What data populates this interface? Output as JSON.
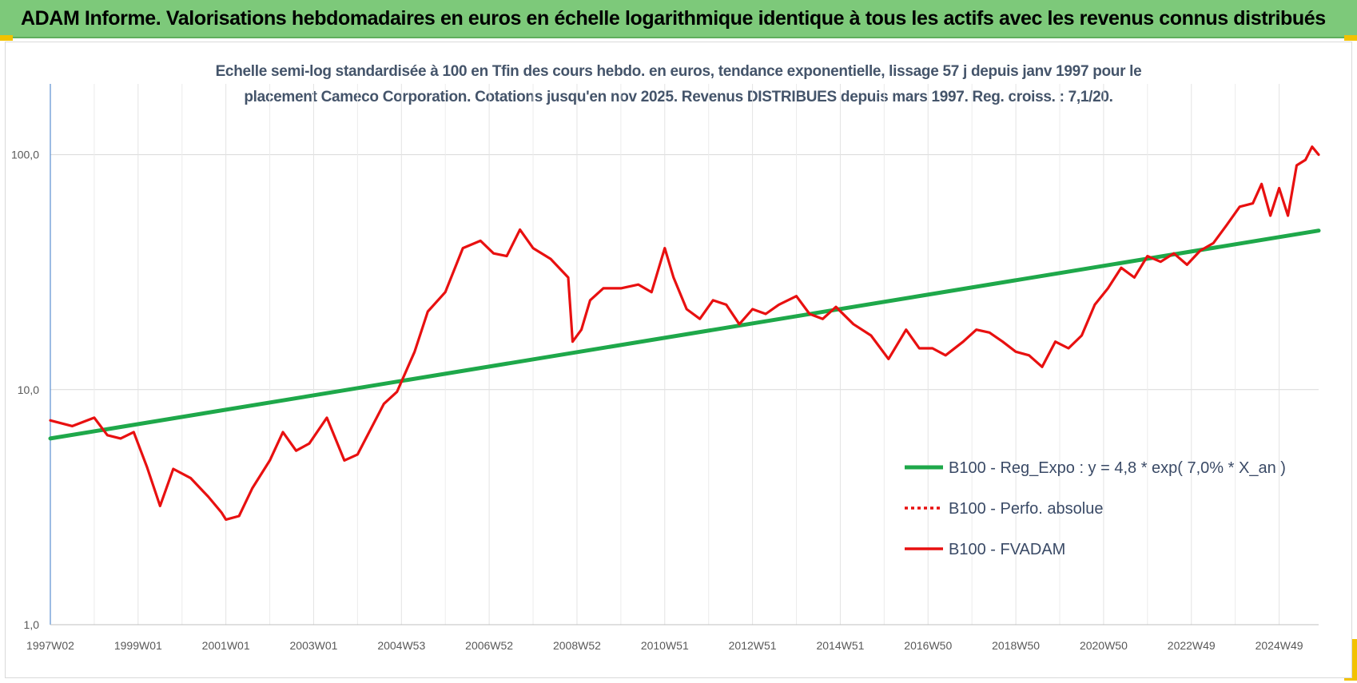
{
  "header": {
    "title": "ADAM Informe. Valorisations hebdomadaires en euros en échelle logarithmique identique à tous les actifs avec les revenus connus distribués"
  },
  "chart_data": {
    "type": "line",
    "title_line1": "Echelle semi-log standardisée à 100 en Tfin des cours hebdo. en euros, tendance exponentielle, lissage 57 j depuis janv 1997 pour le",
    "title_line2": "placement Cameco Corporation. Cotations jusqu'en nov 2025. Revenus DISTRIBUES depuis mars 1997. Reg. croiss. : 7,1/20.",
    "y_scale": "log",
    "ylim": [
      1,
      200
    ],
    "y_ticks": [
      {
        "value": 100,
        "label": "100,0"
      },
      {
        "value": 10,
        "label": "10,0"
      },
      {
        "value": 1,
        "label": "1,0"
      }
    ],
    "xlim": [
      1997.0,
      2025.9
    ],
    "x_ticks": [
      {
        "value": 1997.0,
        "label": "1997W02"
      },
      {
        "value": 1999.0,
        "label": "1999W01"
      },
      {
        "value": 2001.0,
        "label": "2001W01"
      },
      {
        "value": 2003.0,
        "label": "2003W01"
      },
      {
        "value": 2005.0,
        "label": "2004W53"
      },
      {
        "value": 2007.0,
        "label": "2006W52"
      },
      {
        "value": 2009.0,
        "label": "2008W52"
      },
      {
        "value": 2011.0,
        "label": "2010W51"
      },
      {
        "value": 2013.0,
        "label": "2012W51"
      },
      {
        "value": 2015.0,
        "label": "2014W51"
      },
      {
        "value": 2017.0,
        "label": "2016W50"
      },
      {
        "value": 2019.0,
        "label": "2018W50"
      },
      {
        "value": 2021.0,
        "label": "2020W50"
      },
      {
        "value": 2023.0,
        "label": "2022W49"
      },
      {
        "value": 2025.0,
        "label": "2024W49"
      }
    ],
    "series": [
      {
        "name": "B100 - Reg_Expo : y = 4,8 * exp( 7,0% *  X_an )",
        "color": "#1ea84a",
        "style": "solid",
        "x": [
          1997.0,
          2025.9
        ],
        "values": [
          6.2,
          47.5
        ]
      },
      {
        "name": "B100 - Perfo. absolue",
        "color": "#e81010",
        "style": "dotted",
        "x": [],
        "values": []
      },
      {
        "name": "B100 - FVADAM",
        "color": "#e81010",
        "style": "solid",
        "x": [
          1997.0,
          1997.5,
          1998.0,
          1998.3,
          1998.6,
          1998.9,
          1999.2,
          1999.5,
          1999.8,
          2000.2,
          2000.6,
          2000.9,
          2001.0,
          2001.3,
          2001.6,
          2002.0,
          2002.3,
          2002.6,
          2002.9,
          2003.3,
          2003.7,
          2004.0,
          2004.3,
          2004.6,
          2004.9,
          2005.3,
          2005.6,
          2006.0,
          2006.4,
          2006.8,
          2007.1,
          2007.4,
          2007.7,
          2008.0,
          2008.4,
          2008.8,
          2008.9,
          2009.1,
          2009.3,
          2009.6,
          2010.0,
          2010.4,
          2010.7,
          2011.0,
          2011.2,
          2011.5,
          2011.8,
          2012.1,
          2012.4,
          2012.7,
          2013.0,
          2013.3,
          2013.6,
          2014.0,
          2014.3,
          2014.6,
          2014.9,
          2015.3,
          2015.7,
          2016.1,
          2016.5,
          2016.8,
          2017.1,
          2017.4,
          2017.8,
          2018.1,
          2018.4,
          2018.7,
          2019.0,
          2019.3,
          2019.6,
          2019.9,
          2020.2,
          2020.5,
          2020.8,
          2021.1,
          2021.4,
          2021.7,
          2022.0,
          2022.3,
          2022.6,
          2022.9,
          2023.2,
          2023.5,
          2023.8,
          2024.1,
          2024.4,
          2024.6,
          2024.8,
          2025.0,
          2025.2,
          2025.4,
          2025.6,
          2025.75,
          2025.9
        ],
        "values": [
          7.4,
          7.0,
          7.6,
          6.4,
          6.2,
          6.6,
          4.7,
          3.2,
          4.6,
          4.2,
          3.5,
          3.0,
          2.8,
          2.9,
          3.8,
          5.0,
          6.6,
          5.5,
          5.9,
          7.6,
          5.0,
          5.3,
          6.8,
          8.7,
          9.8,
          14.5,
          21.5,
          26.0,
          40.0,
          43.0,
          38.0,
          37.0,
          48.0,
          40.0,
          36.0,
          30.0,
          16.0,
          18.0,
          24.0,
          27.0,
          27.0,
          28.0,
          26.0,
          40.0,
          30.0,
          22.0,
          20.0,
          24.0,
          23.0,
          19.0,
          22.0,
          21.0,
          23.0,
          25.0,
          21.0,
          20.0,
          22.5,
          19.0,
          17.0,
          13.5,
          18.0,
          15.0,
          15.0,
          14.0,
          16.0,
          18.0,
          17.5,
          16.0,
          14.5,
          14.0,
          12.5,
          16.0,
          15.0,
          17.0,
          23.0,
          27.0,
          33.0,
          30.0,
          37.0,
          35.0,
          38.0,
          34.0,
          39.0,
          42.0,
          50.0,
          60.0,
          62.0,
          75.0,
          55.0,
          72.0,
          55.0,
          90.0,
          95.0,
          108.0,
          100.0
        ]
      }
    ],
    "legend_position": "bottom-right",
    "grid": true
  }
}
